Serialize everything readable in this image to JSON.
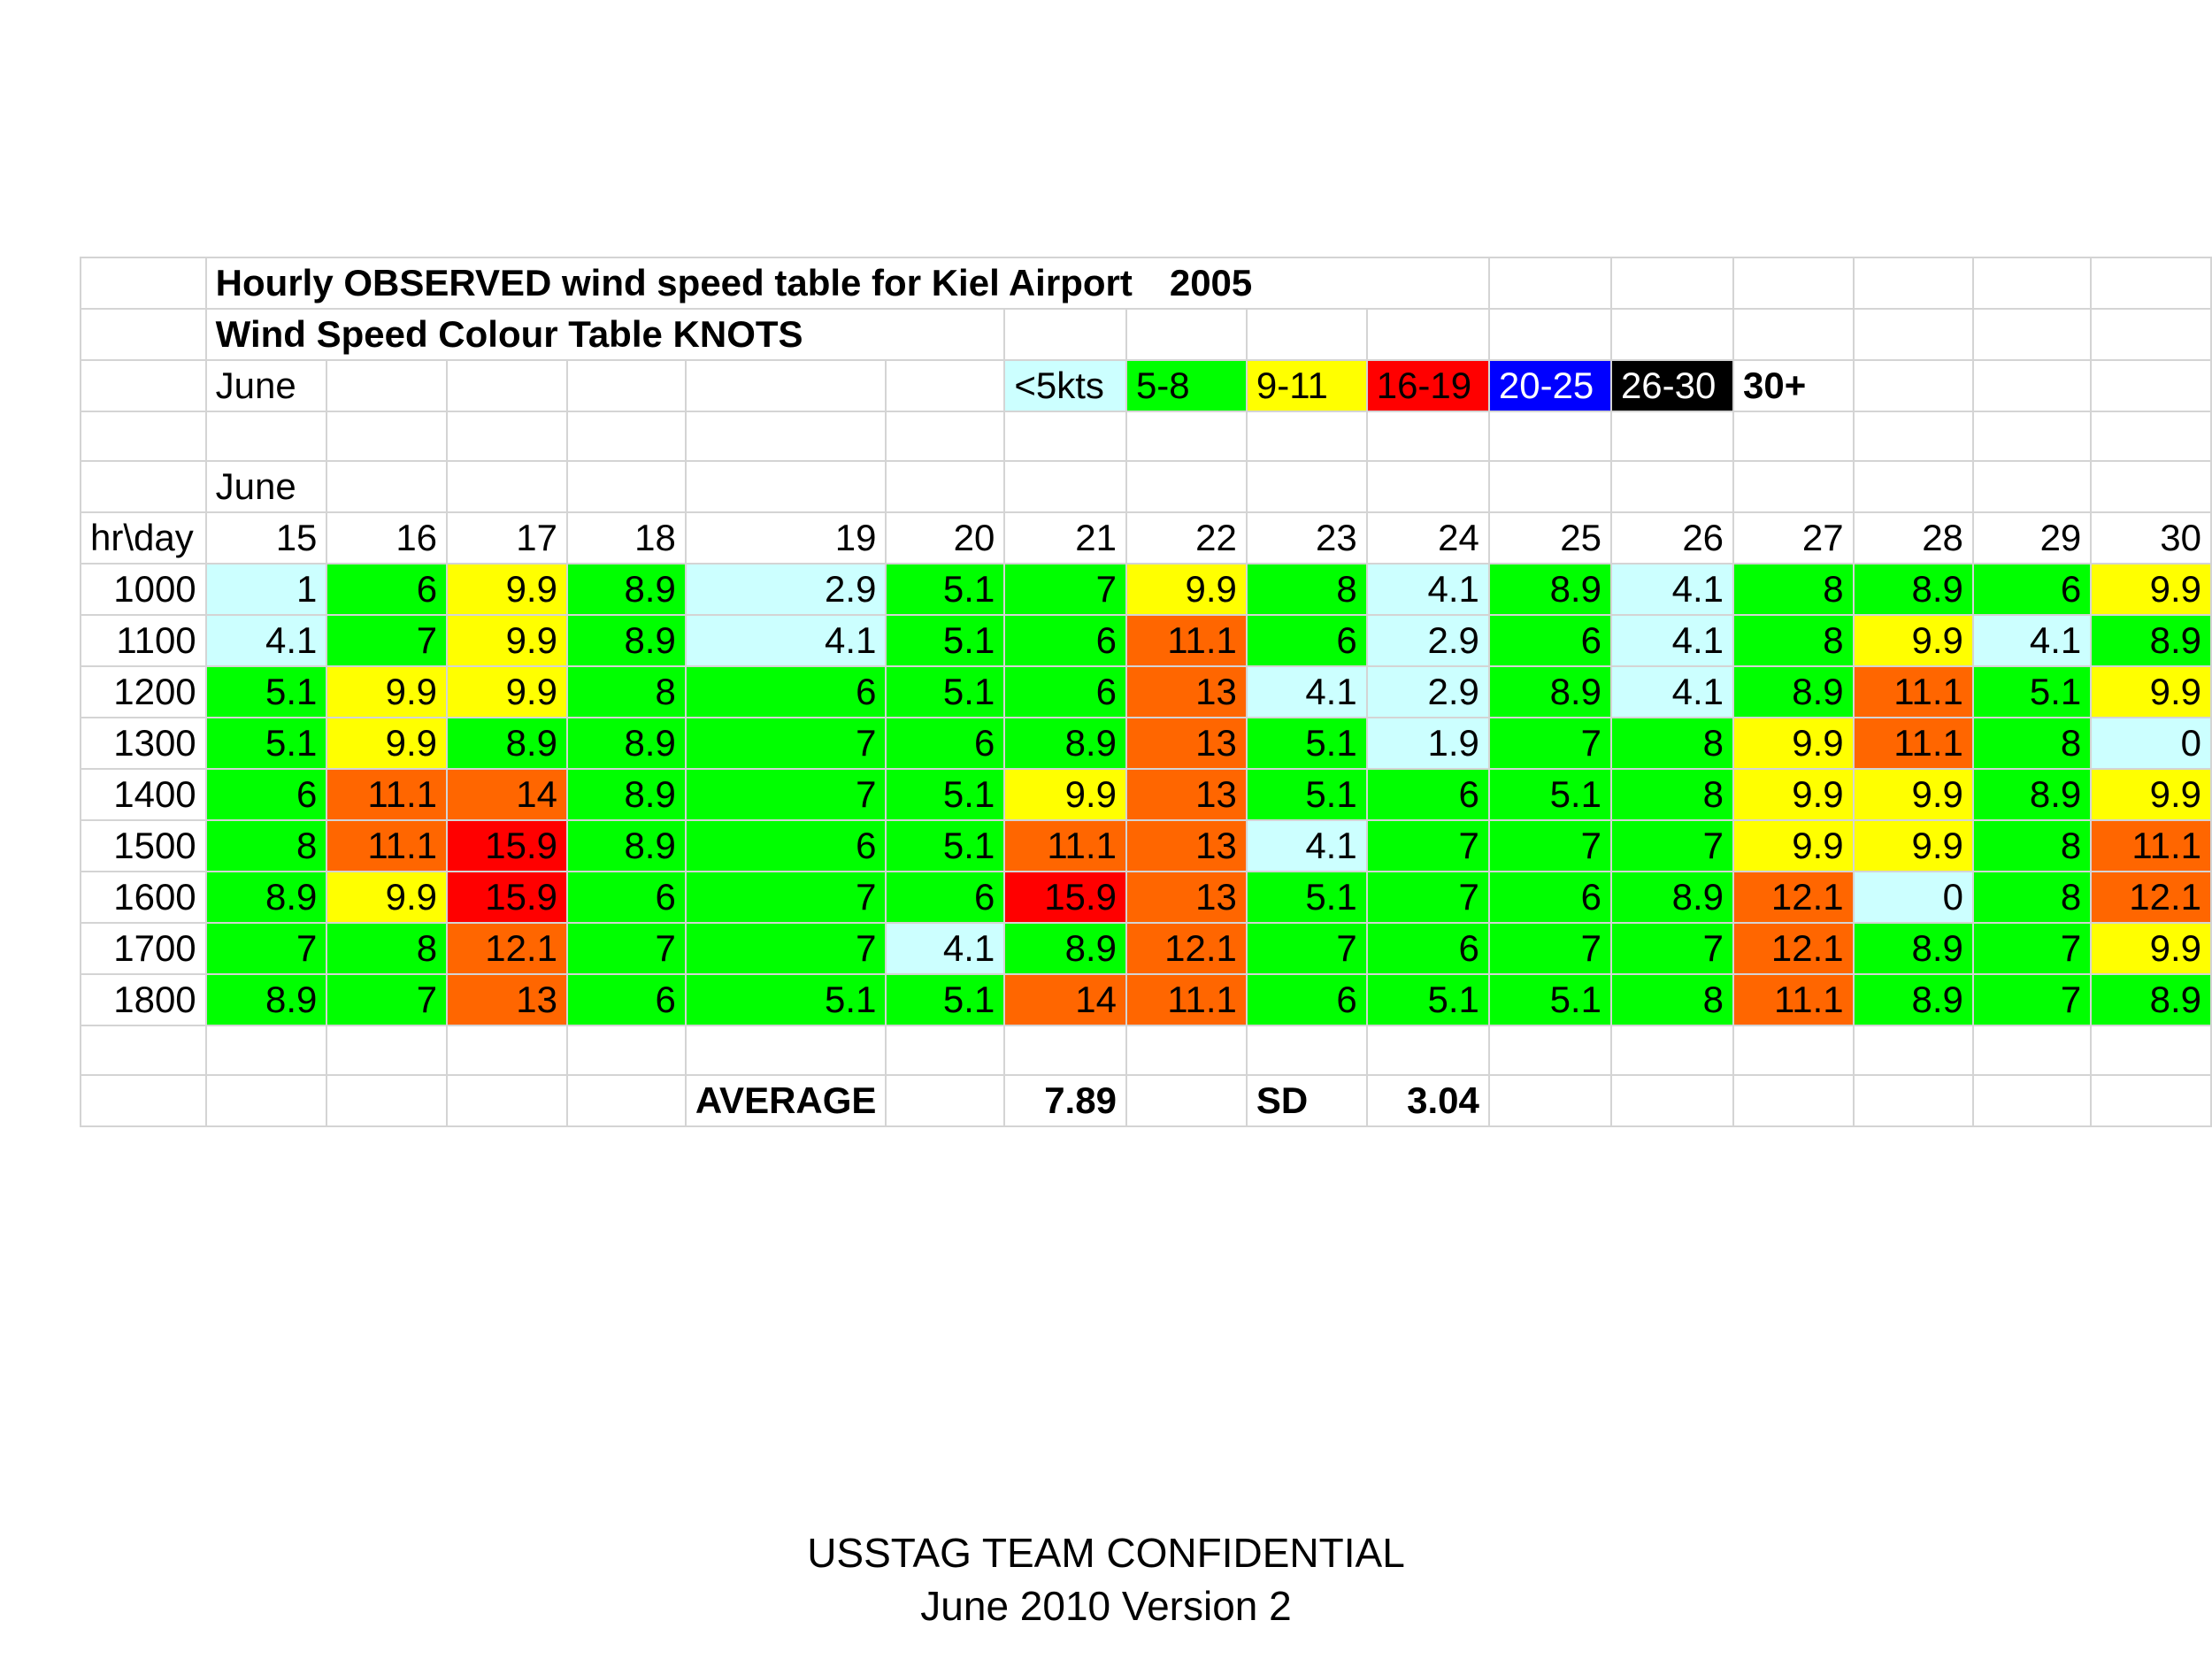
{
  "title": "Hourly OBSERVED wind speed table for Kiel Airport",
  "year": "2005",
  "legend_title": "Wind Speed Colour Table KNOTS",
  "month_label": "June",
  "month_label_2": "June",
  "legend": [
    {
      "label": "<5kts",
      "bg": "#ccffff",
      "fg": "#000000"
    },
    {
      "label": "5-8",
      "bg": "#00ff00",
      "fg": "#000000"
    },
    {
      "label": "9-11",
      "bg": "#ffff00",
      "fg": "#000000"
    },
    {
      "label": "16-19",
      "bg": "#ff0000",
      "fg": "#000000"
    },
    {
      "label": "20-25",
      "bg": "#0000ff",
      "fg": "#ffffff"
    },
    {
      "label": "26-30",
      "bg": "#000000",
      "fg": "#ffffff"
    },
    {
      "label": "30+",
      "bg": "#ffffff",
      "fg": "#000000"
    }
  ],
  "corner_label": "hr\\day",
  "days": [
    "15",
    "16",
    "17",
    "18",
    "19",
    "20",
    "21",
    "22",
    "23",
    "24",
    "25",
    "26",
    "27",
    "28",
    "29",
    "30"
  ],
  "rows": [
    {
      "hour": "1000",
      "values": [
        "1",
        "6",
        "9.9",
        "8.9",
        "2.9",
        "5.1",
        "7",
        "9.9",
        "8",
        "4.1",
        "8.9",
        "4.1",
        "8",
        "8.9",
        "6",
        "9.9"
      ]
    },
    {
      "hour": "1100",
      "values": [
        "4.1",
        "7",
        "9.9",
        "8.9",
        "4.1",
        "5.1",
        "6",
        "11.1",
        "6",
        "2.9",
        "6",
        "4.1",
        "8",
        "9.9",
        "4.1",
        "8.9"
      ]
    },
    {
      "hour": "1200",
      "values": [
        "5.1",
        "9.9",
        "9.9",
        "8",
        "6",
        "5.1",
        "6",
        "13",
        "4.1",
        "2.9",
        "8.9",
        "4.1",
        "8.9",
        "11.1",
        "5.1",
        "9.9"
      ]
    },
    {
      "hour": "1300",
      "values": [
        "5.1",
        "9.9",
        "8.9",
        "8.9",
        "7",
        "6",
        "8.9",
        "13",
        "5.1",
        "1.9",
        "7",
        "8",
        "9.9",
        "11.1",
        "8",
        "0"
      ]
    },
    {
      "hour": "1400",
      "values": [
        "6",
        "11.1",
        "14",
        "8.9",
        "7",
        "5.1",
        "9.9",
        "13",
        "5.1",
        "6",
        "5.1",
        "8",
        "9.9",
        "9.9",
        "8.9",
        "9.9"
      ]
    },
    {
      "hour": "1500",
      "values": [
        "8",
        "11.1",
        "15.9",
        "8.9",
        "6",
        "5.1",
        "11.1",
        "13",
        "4.1",
        "7",
        "7",
        "7",
        "9.9",
        "9.9",
        "8",
        "11.1"
      ]
    },
    {
      "hour": "1600",
      "values": [
        "8.9",
        "9.9",
        "15.9",
        "6",
        "7",
        "6",
        "15.9",
        "13",
        "5.1",
        "7",
        "6",
        "8.9",
        "12.1",
        "0",
        "8",
        "12.1"
      ]
    },
    {
      "hour": "1700",
      "values": [
        "7",
        "8",
        "12.1",
        "7",
        "7",
        "4.1",
        "8.9",
        "12.1",
        "7",
        "6",
        "7",
        "7",
        "12.1",
        "8.9",
        "7",
        "9.9"
      ]
    },
    {
      "hour": "1800",
      "values": [
        "8.9",
        "7",
        "13",
        "6",
        "5.1",
        "5.1",
        "14",
        "11.1",
        "6",
        "5.1",
        "5.1",
        "8",
        "11.1",
        "8.9",
        "7",
        "8.9"
      ]
    }
  ],
  "colors": {
    "lt5": "#ccffff",
    "c5_8": "#00ff00",
    "c9_11": "#ffff00",
    "c11_15": "#ff6600",
    "c16_19": "#ff0000",
    "c20_25": "#0000ff",
    "c26_30": "#000000"
  },
  "summary": {
    "average_label": "AVERAGE",
    "average_value": "7.89",
    "sd_label": "SD",
    "sd_value": "3.04"
  },
  "footer": {
    "line1": "USSTAG TEAM CONFIDENTIAL",
    "line2": "June 2010 Version 2"
  }
}
